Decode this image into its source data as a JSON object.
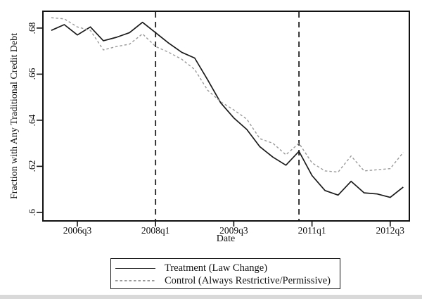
{
  "chart_data": {
    "type": "line",
    "title": "",
    "xlabel": "Date",
    "ylabel": "Fraction with Any Traditional Credit Debt",
    "grid": false,
    "legend_position": "bottom-center",
    "ylim": [
      0.596,
      0.6876
    ],
    "y_ticks": [
      0.6,
      0.62,
      0.64,
      0.66,
      0.68
    ],
    "y_tick_labels": [
      ".6",
      ".62",
      ".64",
      ".66",
      ".68"
    ],
    "x_tick_labels": [
      "2006q3",
      "2008q1",
      "2009q3",
      "2011q1",
      "2012q3"
    ],
    "categories": [
      "2006q1",
      "2006q2",
      "2006q3",
      "2006q4",
      "2007q1",
      "2007q2",
      "2007q3",
      "2007q4",
      "2008q1",
      "2008q2",
      "2008q3",
      "2008q4",
      "2009q1",
      "2009q2",
      "2009q3",
      "2009q4",
      "2010q1",
      "2010q2",
      "2010q3",
      "2010q4",
      "2011q1",
      "2011q2",
      "2011q3",
      "2011q4",
      "2012q1",
      "2012q2",
      "2012q3",
      "2012q4"
    ],
    "series": [
      {
        "name": "Treatment (Law Change)",
        "style": "solid",
        "color": "#1a1a1a",
        "values": [
          0.679,
          0.6815,
          0.677,
          0.6805,
          0.6745,
          0.676,
          0.678,
          0.6825,
          0.678,
          0.6735,
          0.6695,
          0.667,
          0.6575,
          0.6475,
          0.641,
          0.636,
          0.6285,
          0.624,
          0.6205,
          0.6265,
          0.616,
          0.6095,
          0.6075,
          0.6135,
          0.6085,
          0.608,
          0.6065,
          0.611
        ]
      },
      {
        "name": "Control (Always Restrictive/Permissive)",
        "style": "dashed",
        "color": "#999999",
        "values": [
          0.6845,
          0.684,
          0.6805,
          0.679,
          0.6705,
          0.672,
          0.673,
          0.6775,
          0.672,
          0.6695,
          0.6665,
          0.662,
          0.653,
          0.648,
          0.6445,
          0.6405,
          0.632,
          0.63,
          0.625,
          0.63,
          0.6215,
          0.618,
          0.6175,
          0.6245,
          0.618,
          0.6185,
          0.619,
          0.626
        ]
      }
    ],
    "reference_lines": [
      {
        "x": "2008q1",
        "style": "dashed",
        "color": "#222222"
      },
      {
        "x": "2010q4",
        "style": "dashed",
        "color": "#222222"
      }
    ]
  }
}
